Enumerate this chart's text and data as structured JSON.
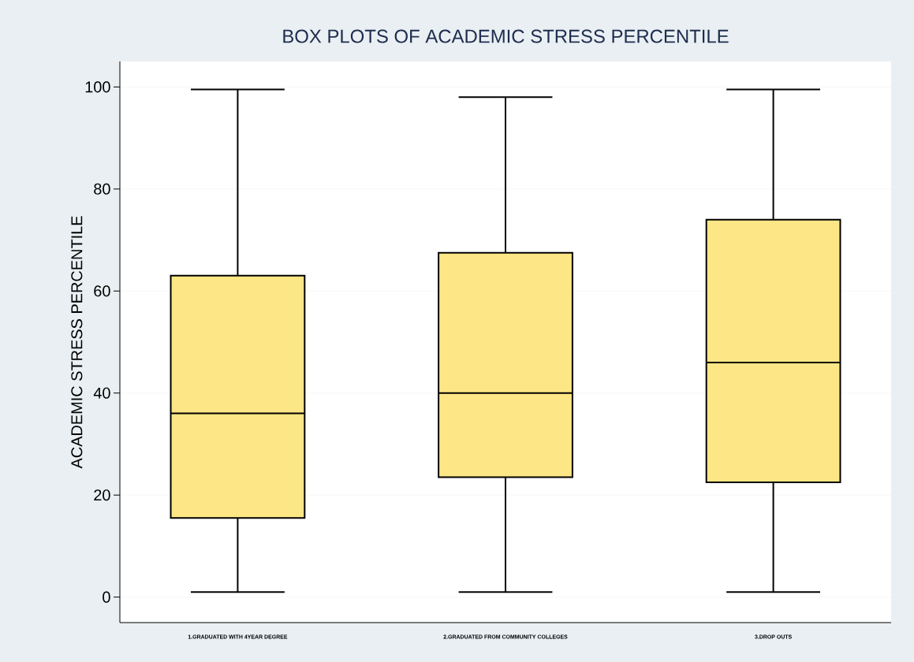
{
  "chart_data": {
    "type": "box",
    "title": "BOX PLOTS OF ACADEMIC STRESS PERCENTILE",
    "ylabel": "ACADEMIC STRESS PERCENTILE",
    "categories": [
      "1.GRADUATED WITH 4YEAR DEGREE",
      "2.GRADUATED FROM COMMUNITY COLLEGES",
      "3.DROP OUTS"
    ],
    "boxes": [
      {
        "low": 1,
        "q1": 15.5,
        "median": 36,
        "q3": 63,
        "high": 99.5
      },
      {
        "low": 1,
        "q1": 23.5,
        "median": 40,
        "q3": 67.5,
        "high": 98
      },
      {
        "low": 1,
        "q1": 22.5,
        "median": 46,
        "q3": 74,
        "high": 99.5
      }
    ],
    "color": "#fde685",
    "ylim": [
      -5,
      105
    ],
    "yticks": [
      0,
      20,
      40,
      60,
      80,
      100
    ],
    "grid": "y"
  }
}
